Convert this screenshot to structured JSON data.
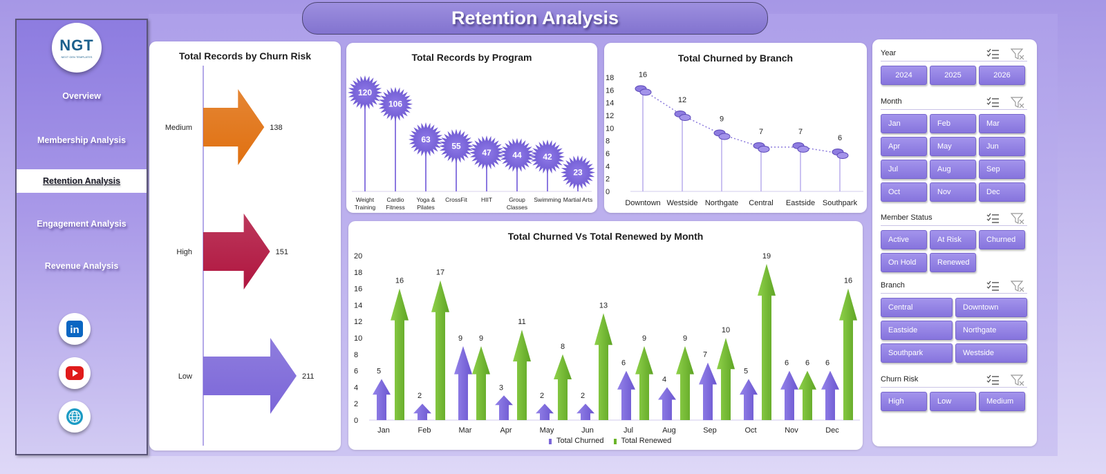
{
  "title": "Retention Analysis",
  "logo": {
    "text": "NGT",
    "subtext": "NEXT GEN TEMPLATES"
  },
  "nav": [
    {
      "label": "Overview"
    },
    {
      "label": "Membership Analysis"
    },
    {
      "label": "Retention Analysis",
      "active": true
    },
    {
      "label": "Engagement Analysis"
    },
    {
      "label": "Revenue Analysis"
    }
  ],
  "social": [
    {
      "icon": "linkedin-icon",
      "color": "#0a66c2",
      "glyph": "in"
    },
    {
      "icon": "youtube-icon",
      "color": "#e01b1b"
    },
    {
      "icon": "globe-icon",
      "color": "#1b9bc4"
    }
  ],
  "colors": {
    "purple": "#7b66d8",
    "green": "#6bb52a",
    "orange": "#e07010",
    "crimson": "#b0153f",
    "accent": "#8674dd"
  },
  "chart_data": [
    {
      "id": "churn-risk",
      "type": "bar",
      "title": "Total Records by Churn Risk",
      "categories": [
        "Medium",
        "High",
        "Low"
      ],
      "values": [
        138,
        151,
        211
      ],
      "colors": [
        "#e07010",
        "#b0153f",
        "#7b66d8"
      ]
    },
    {
      "id": "program",
      "type": "scatter",
      "title": "Total Records by Program",
      "categories": [
        "Weight Training",
        "Cardio Fitness",
        "Yoga & Pilates",
        "CrossFit",
        "HIIT",
        "Group Classes",
        "Swimming",
        "Martial Arts"
      ],
      "category_lines": [
        [
          "Weight",
          "Training"
        ],
        [
          "Cardio",
          "Fitness"
        ],
        [
          "Yoga &",
          "Pilates"
        ],
        [
          "CrossFit"
        ],
        [
          "HIIT"
        ],
        [
          "Group",
          "Classes"
        ],
        [
          "Swimming"
        ],
        [
          "Martial Arts"
        ]
      ],
      "values": [
        120,
        106,
        63,
        55,
        47,
        44,
        42,
        23
      ]
    },
    {
      "id": "branch",
      "type": "line",
      "title": "Total Churned by Branch",
      "categories": [
        "Downtown",
        "Westside",
        "Northgate",
        "Central",
        "Eastside",
        "Southpark"
      ],
      "values": [
        16,
        12,
        9,
        7,
        7,
        6
      ],
      "ylim": [
        0,
        18
      ],
      "yticks": [
        0,
        2,
        4,
        6,
        8,
        10,
        12,
        14,
        16,
        18
      ]
    },
    {
      "id": "monthly",
      "type": "bar",
      "title": "Total Churned Vs Total Renewed by Month",
      "categories": [
        "Jan",
        "Feb",
        "Mar",
        "Apr",
        "May",
        "Jun",
        "Jul",
        "Aug",
        "Sep",
        "Oct",
        "Nov",
        "Dec"
      ],
      "series": [
        {
          "name": "Total Churned",
          "values": [
            5,
            2,
            9,
            3,
            2,
            2,
            6,
            4,
            7,
            5,
            6,
            6
          ],
          "color": "#7b66d8"
        },
        {
          "name": "Total Renewed",
          "values": [
            16,
            17,
            9,
            11,
            8,
            13,
            9,
            9,
            10,
            19,
            6,
            16
          ],
          "color": "#6bb52a"
        }
      ],
      "ylim": [
        0,
        20
      ],
      "yticks": [
        0,
        2,
        4,
        6,
        8,
        10,
        12,
        14,
        16,
        18,
        20
      ],
      "legend": "bottom"
    }
  ],
  "slicers": [
    {
      "title": "Year",
      "items": [
        "2024",
        "2025",
        "2026"
      ],
      "cols": 3
    },
    {
      "title": "Month",
      "items": [
        "Jan",
        "Feb",
        "Mar",
        "Apr",
        "May",
        "Jun",
        "Jul",
        "Aug",
        "Sep",
        "Oct",
        "Nov",
        "Dec"
      ],
      "cols": 3
    },
    {
      "title": "Member Status",
      "items": [
        "Active",
        "At Risk",
        "Churned",
        "On Hold",
        "Renewed"
      ],
      "cols": 3
    },
    {
      "title": "Branch",
      "items": [
        "Central",
        "Downtown",
        "Eastside",
        "Northgate",
        "Southpark",
        "Westside"
      ],
      "cols": 2
    },
    {
      "title": "Churn Risk",
      "items": [
        "High",
        "Low",
        "Medium"
      ],
      "cols": 3
    }
  ]
}
